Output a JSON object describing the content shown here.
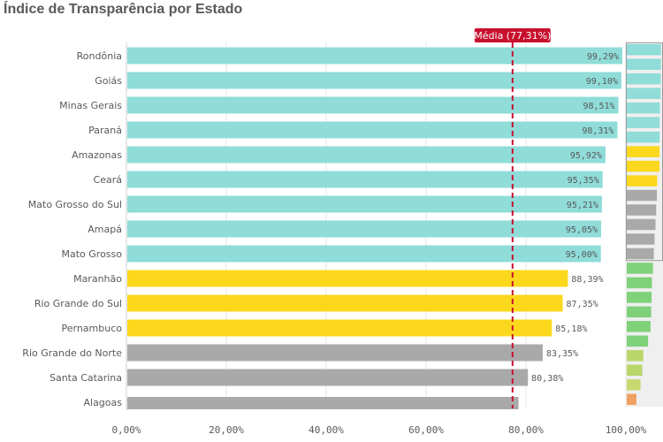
{
  "title": "Índice de Transparência por Estado",
  "chart_data": {
    "type": "bar",
    "orientation": "horizontal",
    "title": "Índice de Transparência por Estado",
    "categories": [
      "Rondônia",
      "Goiás",
      "Minas Gerais",
      "Paraná",
      "Amazonas",
      "Ceará",
      "Mato Grosso do Sul",
      "Amapá",
      "Mato Grosso",
      "Maranhão",
      "Rio Grande do Sul",
      "Pernambuco",
      "Rio Grande do Norte",
      "Santa Catarina",
      "Alagoas"
    ],
    "values": [
      99.29,
      99.1,
      98.51,
      98.31,
      95.92,
      95.35,
      95.21,
      95.05,
      95.0,
      88.39,
      87.35,
      85.18,
      83.35,
      80.38,
      78.5
    ],
    "value_labels": [
      "99,29%",
      "99,10%",
      "98,51%",
      "98,31%",
      "95,92%",
      "95,35%",
      "95,21%",
      "95,05%",
      "95,00%",
      "88,39%",
      "87,35%",
      "85,18%",
      "83,35%",
      "80,38%",
      ""
    ],
    "bar_colors": [
      "#8fdcd9",
      "#8fdcd9",
      "#8fdcd9",
      "#8fdcd9",
      "#8fdcd9",
      "#8fdcd9",
      "#8fdcd9",
      "#8fdcd9",
      "#8fdcd9",
      "#fcd81c",
      "#fcd81c",
      "#fcd81c",
      "#a9a9a9",
      "#a9a9a9",
      "#a9a9a9"
    ],
    "xlim": [
      0,
      100
    ],
    "xticks": [
      0,
      20,
      40,
      60,
      80,
      100
    ],
    "xtick_labels": [
      "0,00%",
      "20,00%",
      "40,00%",
      "60,00%",
      "80,00%",
      "100,00%"
    ],
    "grid": true,
    "reference_line": {
      "value": 77.31,
      "label": "Média (77,31%)",
      "color": "#c8102e"
    },
    "minimap": {
      "values": [
        99.29,
        99.1,
        98.51,
        98.31,
        95.92,
        95.35,
        95.21,
        95.05,
        95.0,
        88.39,
        87.35,
        85.18,
        83.35,
        80.38,
        78.5,
        76,
        73,
        72,
        71,
        69,
        62,
        48,
        45,
        40,
        28
      ],
      "colors": [
        "#8fdcd9",
        "#8fdcd9",
        "#8fdcd9",
        "#8fdcd9",
        "#8fdcd9",
        "#8fdcd9",
        "#8fdcd9",
        "#fcd81c",
        "#fcd81c",
        "#fcd81c",
        "#a9a9a9",
        "#a9a9a9",
        "#a9a9a9",
        "#a9a9a9",
        "#a9a9a9",
        "#7fd17a",
        "#7fd17a",
        "#7fd17a",
        "#7fd17a",
        "#7fd17a",
        "#7fd17a",
        "#b8d66a",
        "#b8d66a",
        "#c9d870",
        "#f0a060"
      ]
    }
  }
}
